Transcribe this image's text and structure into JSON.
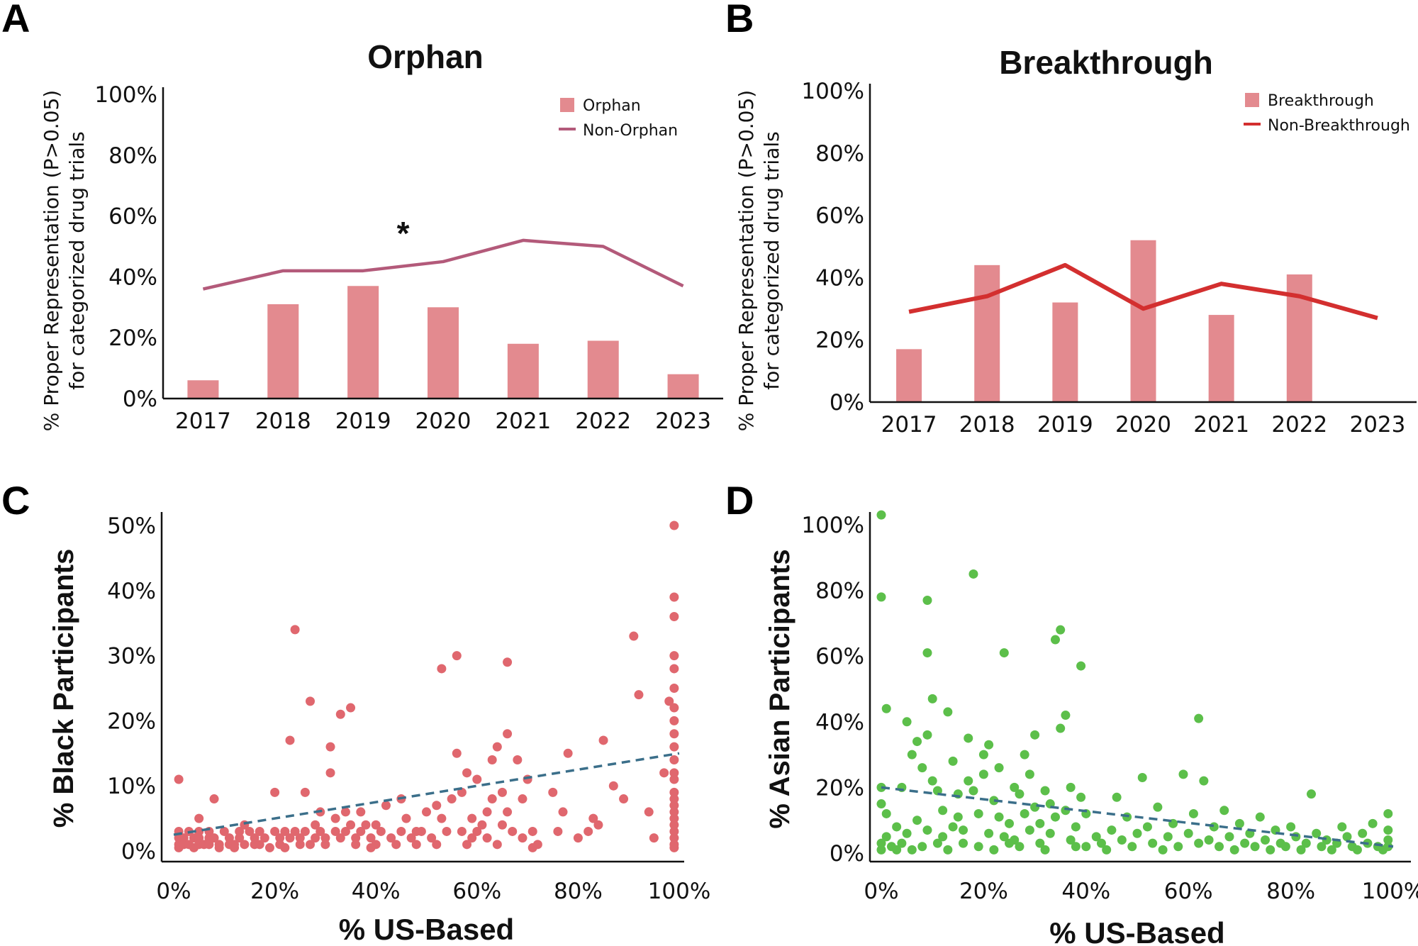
{
  "chart_data": [
    {
      "panel": "A",
      "type": "bar",
      "title": "Orphan",
      "ylabel": [
        "% Proper Representation (P>0.05)",
        "for categorized drug trials"
      ],
      "xlabel": "",
      "categories": [
        "2017",
        "2018",
        "2019",
        "2020",
        "2021",
        "2022",
        "2023"
      ],
      "ylim": [
        0,
        100
      ],
      "yticks": [
        "0%",
        "20%",
        "40%",
        "60%",
        "80%",
        "100%"
      ],
      "series": [
        {
          "name": "Orphan",
          "kind": "bar",
          "color": "#e38a8f",
          "values": [
            6,
            31,
            37,
            30,
            18,
            19,
            8
          ]
        },
        {
          "name": "Non-Orphan",
          "kind": "line",
          "color": "#b35a7a",
          "values": [
            36,
            42,
            42,
            45,
            52,
            50,
            37
          ]
        }
      ],
      "annotation": {
        "text": "*",
        "between": [
          "2019",
          "2020"
        ]
      },
      "legend_position": "top-right",
      "grid": false
    },
    {
      "panel": "B",
      "type": "bar",
      "title": "Breakthrough",
      "ylabel": [
        "% Proper Representation (P>0.05)",
        "for categorized drug trials"
      ],
      "xlabel": "",
      "categories": [
        "2017",
        "2018",
        "2019",
        "2020",
        "2021",
        "2022",
        "2023"
      ],
      "ylim": [
        0,
        100
      ],
      "yticks": [
        "0%",
        "20%",
        "40%",
        "60%",
        "80%",
        "100%"
      ],
      "series": [
        {
          "name": "Breakthrough",
          "kind": "bar",
          "color": "#e38a8f",
          "values": [
            17,
            44,
            32,
            52,
            28,
            41,
            0
          ]
        },
        {
          "name": "Non-Breakthrough",
          "kind": "line",
          "color": "#d32f2f",
          "values": [
            29,
            34,
            44,
            30,
            38,
            34,
            27
          ]
        }
      ],
      "legend_position": "top-right",
      "grid": false
    },
    {
      "panel": "C",
      "type": "scatter",
      "title": "",
      "xlabel": "% US-Based",
      "ylabel": "% Black  Participants",
      "xlim": [
        0,
        100
      ],
      "ylim": [
        0,
        50
      ],
      "xticks": [
        "0%",
        "20%",
        "40%",
        "60%",
        "80%",
        "100%"
      ],
      "yticks": [
        "0%",
        "10%",
        "20%",
        "30%",
        "40%",
        "50%"
      ],
      "color": "#e0676e",
      "trendline": {
        "style": "dashed",
        "color": "#3b6f8a",
        "x": [
          0,
          100
        ],
        "y": [
          2.5,
          15
        ]
      },
      "points": [
        [
          1,
          11
        ],
        [
          1,
          3
        ],
        [
          1,
          2
        ],
        [
          1,
          1
        ],
        [
          1,
          0.5
        ],
        [
          2,
          2
        ],
        [
          2,
          1
        ],
        [
          3,
          3
        ],
        [
          3,
          1
        ],
        [
          4,
          2
        ],
        [
          4,
          0.5
        ],
        [
          5,
          5
        ],
        [
          5,
          3
        ],
        [
          5,
          2
        ],
        [
          5,
          1
        ],
        [
          6,
          1
        ],
        [
          7,
          3
        ],
        [
          7,
          2
        ],
        [
          7,
          1
        ],
        [
          8,
          8
        ],
        [
          8,
          2
        ],
        [
          9,
          0.5
        ],
        [
          9,
          1
        ],
        [
          10,
          3
        ],
        [
          11,
          2
        ],
        [
          11,
          1
        ],
        [
          12,
          1
        ],
        [
          12,
          0.5
        ],
        [
          13,
          3
        ],
        [
          13,
          2
        ],
        [
          14,
          4
        ],
        [
          14,
          1
        ],
        [
          15,
          3
        ],
        [
          16,
          2
        ],
        [
          16,
          1
        ],
        [
          17,
          3
        ],
        [
          17,
          1
        ],
        [
          18,
          2
        ],
        [
          19,
          0.5
        ],
        [
          20,
          3
        ],
        [
          20,
          9
        ],
        [
          21,
          2
        ],
        [
          21,
          1
        ],
        [
          22,
          3
        ],
        [
          22,
          0.5
        ],
        [
          23,
          17
        ],
        [
          23,
          2
        ],
        [
          24,
          34
        ],
        [
          24,
          3
        ],
        [
          25,
          1
        ],
        [
          25,
          2
        ],
        [
          26,
          9
        ],
        [
          26,
          3
        ],
        [
          27,
          23
        ],
        [
          27,
          1
        ],
        [
          28,
          4
        ],
        [
          28,
          2
        ],
        [
          29,
          6
        ],
        [
          29,
          3
        ],
        [
          30,
          1
        ],
        [
          30,
          2
        ],
        [
          31,
          12
        ],
        [
          31,
          16
        ],
        [
          32,
          3
        ],
        [
          32,
          5
        ],
        [
          33,
          21
        ],
        [
          33,
          2
        ],
        [
          34,
          6
        ],
        [
          34,
          3
        ],
        [
          35,
          22
        ],
        [
          35,
          4
        ],
        [
          36,
          2
        ],
        [
          36,
          1
        ],
        [
          37,
          6
        ],
        [
          37,
          3
        ],
        [
          38,
          4
        ],
        [
          39,
          2
        ],
        [
          39,
          0.5
        ],
        [
          40,
          4
        ],
        [
          40,
          1
        ],
        [
          41,
          3
        ],
        [
          42,
          7
        ],
        [
          43,
          2
        ],
        [
          44,
          1
        ],
        [
          45,
          3
        ],
        [
          45,
          8
        ],
        [
          46,
          5
        ],
        [
          47,
          2
        ],
        [
          48,
          3
        ],
        [
          48,
          1
        ],
        [
          49,
          3
        ],
        [
          50,
          6
        ],
        [
          51,
          2
        ],
        [
          52,
          7
        ],
        [
          52,
          1
        ],
        [
          53,
          28
        ],
        [
          53,
          5
        ],
        [
          54,
          3
        ],
        [
          55,
          8
        ],
        [
          56,
          30
        ],
        [
          56,
          15
        ],
        [
          57,
          9
        ],
        [
          57,
          3
        ],
        [
          58,
          12
        ],
        [
          58,
          1
        ],
        [
          59,
          2
        ],
        [
          59,
          5
        ],
        [
          60,
          11
        ],
        [
          60,
          3
        ],
        [
          61,
          4
        ],
        [
          62,
          6
        ],
        [
          62,
          2
        ],
        [
          63,
          14
        ],
        [
          63,
          8
        ],
        [
          64,
          1
        ],
        [
          64,
          16
        ],
        [
          65,
          9
        ],
        [
          65,
          4
        ],
        [
          66,
          29
        ],
        [
          66,
          18
        ],
        [
          66,
          6
        ],
        [
          67,
          3
        ],
        [
          68,
          14
        ],
        [
          69,
          8
        ],
        [
          69,
          2
        ],
        [
          70,
          11
        ],
        [
          71,
          0.5
        ],
        [
          71,
          3
        ],
        [
          72,
          1
        ],
        [
          75,
          9
        ],
        [
          76,
          3
        ],
        [
          77,
          6
        ],
        [
          78,
          15
        ],
        [
          80,
          2
        ],
        [
          82,
          3
        ],
        [
          83,
          5
        ],
        [
          84,
          4
        ],
        [
          85,
          17
        ],
        [
          87,
          10
        ],
        [
          89,
          8
        ],
        [
          91,
          33
        ],
        [
          92,
          24
        ],
        [
          94,
          6
        ],
        [
          95,
          2
        ],
        [
          97,
          12
        ],
        [
          98,
          23
        ],
        [
          99,
          0.5
        ],
        [
          99,
          1
        ],
        [
          99,
          2
        ],
        [
          99,
          3
        ],
        [
          99,
          4
        ],
        [
          99,
          5
        ],
        [
          99,
          6
        ],
        [
          99,
          7
        ],
        [
          99,
          8
        ],
        [
          99,
          9
        ],
        [
          99,
          11
        ],
        [
          99,
          12
        ],
        [
          99,
          14
        ],
        [
          99,
          16
        ],
        [
          99,
          18
        ],
        [
          99,
          20
        ],
        [
          99,
          22
        ],
        [
          99,
          25
        ],
        [
          99,
          28
        ],
        [
          99,
          30
        ],
        [
          99,
          36
        ],
        [
          99,
          39
        ],
        [
          99,
          50
        ]
      ]
    },
    {
      "panel": "D",
      "type": "scatter",
      "title": "",
      "xlabel": "% US-Based",
      "ylabel": "% Asian Participants",
      "xlim": [
        0,
        100
      ],
      "ylim": [
        0,
        100
      ],
      "xticks": [
        "0%",
        "20%",
        "40%",
        "60%",
        "80%",
        "100%"
      ],
      "yticks": [
        "0%",
        "20%",
        "40%",
        "60%",
        "80%",
        "100%"
      ],
      "color": "#5cbf4a",
      "trendline": {
        "style": "dashed",
        "color": "#3b6f8a",
        "x": [
          0,
          100
        ],
        "y": [
          20,
          2
        ]
      },
      "points": [
        [
          0,
          103
        ],
        [
          0,
          78
        ],
        [
          0,
          20
        ],
        [
          0,
          15
        ],
        [
          0,
          3
        ],
        [
          0,
          1
        ],
        [
          1,
          44
        ],
        [
          1,
          12
        ],
        [
          1,
          5
        ],
        [
          2,
          2
        ],
        [
          3,
          8
        ],
        [
          3,
          1
        ],
        [
          4,
          20
        ],
        [
          4,
          3
        ],
        [
          5,
          40
        ],
        [
          5,
          6
        ],
        [
          6,
          30
        ],
        [
          6,
          1
        ],
        [
          7,
          34
        ],
        [
          7,
          10
        ],
        [
          8,
          2
        ],
        [
          8,
          26
        ],
        [
          9,
          77
        ],
        [
          9,
          61
        ],
        [
          9,
          36
        ],
        [
          9,
          7
        ],
        [
          10,
          47
        ],
        [
          10,
          22
        ],
        [
          11,
          19
        ],
        [
          11,
          3
        ],
        [
          12,
          13
        ],
        [
          12,
          5
        ],
        [
          13,
          43
        ],
        [
          13,
          1
        ],
        [
          14,
          28
        ],
        [
          14,
          8
        ],
        [
          15,
          18
        ],
        [
          15,
          11
        ],
        [
          16,
          3
        ],
        [
          16,
          7
        ],
        [
          17,
          35
        ],
        [
          17,
          22
        ],
        [
          18,
          85
        ],
        [
          18,
          19
        ],
        [
          19,
          2
        ],
        [
          19,
          12
        ],
        [
          20,
          30
        ],
        [
          20,
          24
        ],
        [
          21,
          33
        ],
        [
          21,
          6
        ],
        [
          22,
          16
        ],
        [
          22,
          1
        ],
        [
          23,
          26
        ],
        [
          23,
          11
        ],
        [
          24,
          61
        ],
        [
          24,
          5
        ],
        [
          25,
          3
        ],
        [
          25,
          9
        ],
        [
          26,
          20
        ],
        [
          26,
          4
        ],
        [
          27,
          18
        ],
        [
          27,
          2
        ],
        [
          28,
          30
        ],
        [
          28,
          12
        ],
        [
          29,
          24
        ],
        [
          29,
          7
        ],
        [
          30,
          36
        ],
        [
          30,
          14
        ],
        [
          31,
          3
        ],
        [
          31,
          9
        ],
        [
          32,
          19
        ],
        [
          32,
          1
        ],
        [
          33,
          15
        ],
        [
          33,
          6
        ],
        [
          34,
          65
        ],
        [
          34,
          11
        ],
        [
          35,
          68
        ],
        [
          35,
          38
        ],
        [
          36,
          42
        ],
        [
          36,
          13
        ],
        [
          37,
          20
        ],
        [
          37,
          4
        ],
        [
          38,
          2
        ],
        [
          38,
          8
        ],
        [
          39,
          57
        ],
        [
          39,
          17
        ],
        [
          40,
          12
        ],
        [
          40,
          2
        ],
        [
          42,
          5
        ],
        [
          43,
          3
        ],
        [
          44,
          1
        ],
        [
          45,
          7
        ],
        [
          46,
          17
        ],
        [
          47,
          4
        ],
        [
          48,
          11
        ],
        [
          49,
          2
        ],
        [
          50,
          6
        ],
        [
          51,
          23
        ],
        [
          52,
          8
        ],
        [
          53,
          3
        ],
        [
          54,
          14
        ],
        [
          55,
          1
        ],
        [
          56,
          5
        ],
        [
          57,
          9
        ],
        [
          58,
          2
        ],
        [
          59,
          24
        ],
        [
          60,
          6
        ],
        [
          61,
          12
        ],
        [
          62,
          41
        ],
        [
          62,
          3
        ],
        [
          63,
          22
        ],
        [
          64,
          4
        ],
        [
          65,
          8
        ],
        [
          66,
          2
        ],
        [
          67,
          13
        ],
        [
          68,
          5
        ],
        [
          69,
          1
        ],
        [
          70,
          9
        ],
        [
          71,
          3
        ],
        [
          72,
          6
        ],
        [
          73,
          2
        ],
        [
          74,
          11
        ],
        [
          75,
          4
        ],
        [
          76,
          1
        ],
        [
          77,
          7
        ],
        [
          78,
          3
        ],
        [
          79,
          2
        ],
        [
          80,
          8
        ],
        [
          81,
          5
        ],
        [
          82,
          1
        ],
        [
          83,
          3
        ],
        [
          84,
          18
        ],
        [
          85,
          6
        ],
        [
          86,
          2
        ],
        [
          87,
          4
        ],
        [
          88,
          1
        ],
        [
          89,
          3
        ],
        [
          90,
          8
        ],
        [
          91,
          5
        ],
        [
          92,
          2
        ],
        [
          93,
          1
        ],
        [
          94,
          6
        ],
        [
          95,
          3
        ],
        [
          96,
          9
        ],
        [
          97,
          2
        ],
        [
          98,
          1
        ],
        [
          99,
          12
        ],
        [
          99,
          7
        ],
        [
          99,
          4
        ],
        [
          99,
          2
        ]
      ]
    }
  ]
}
